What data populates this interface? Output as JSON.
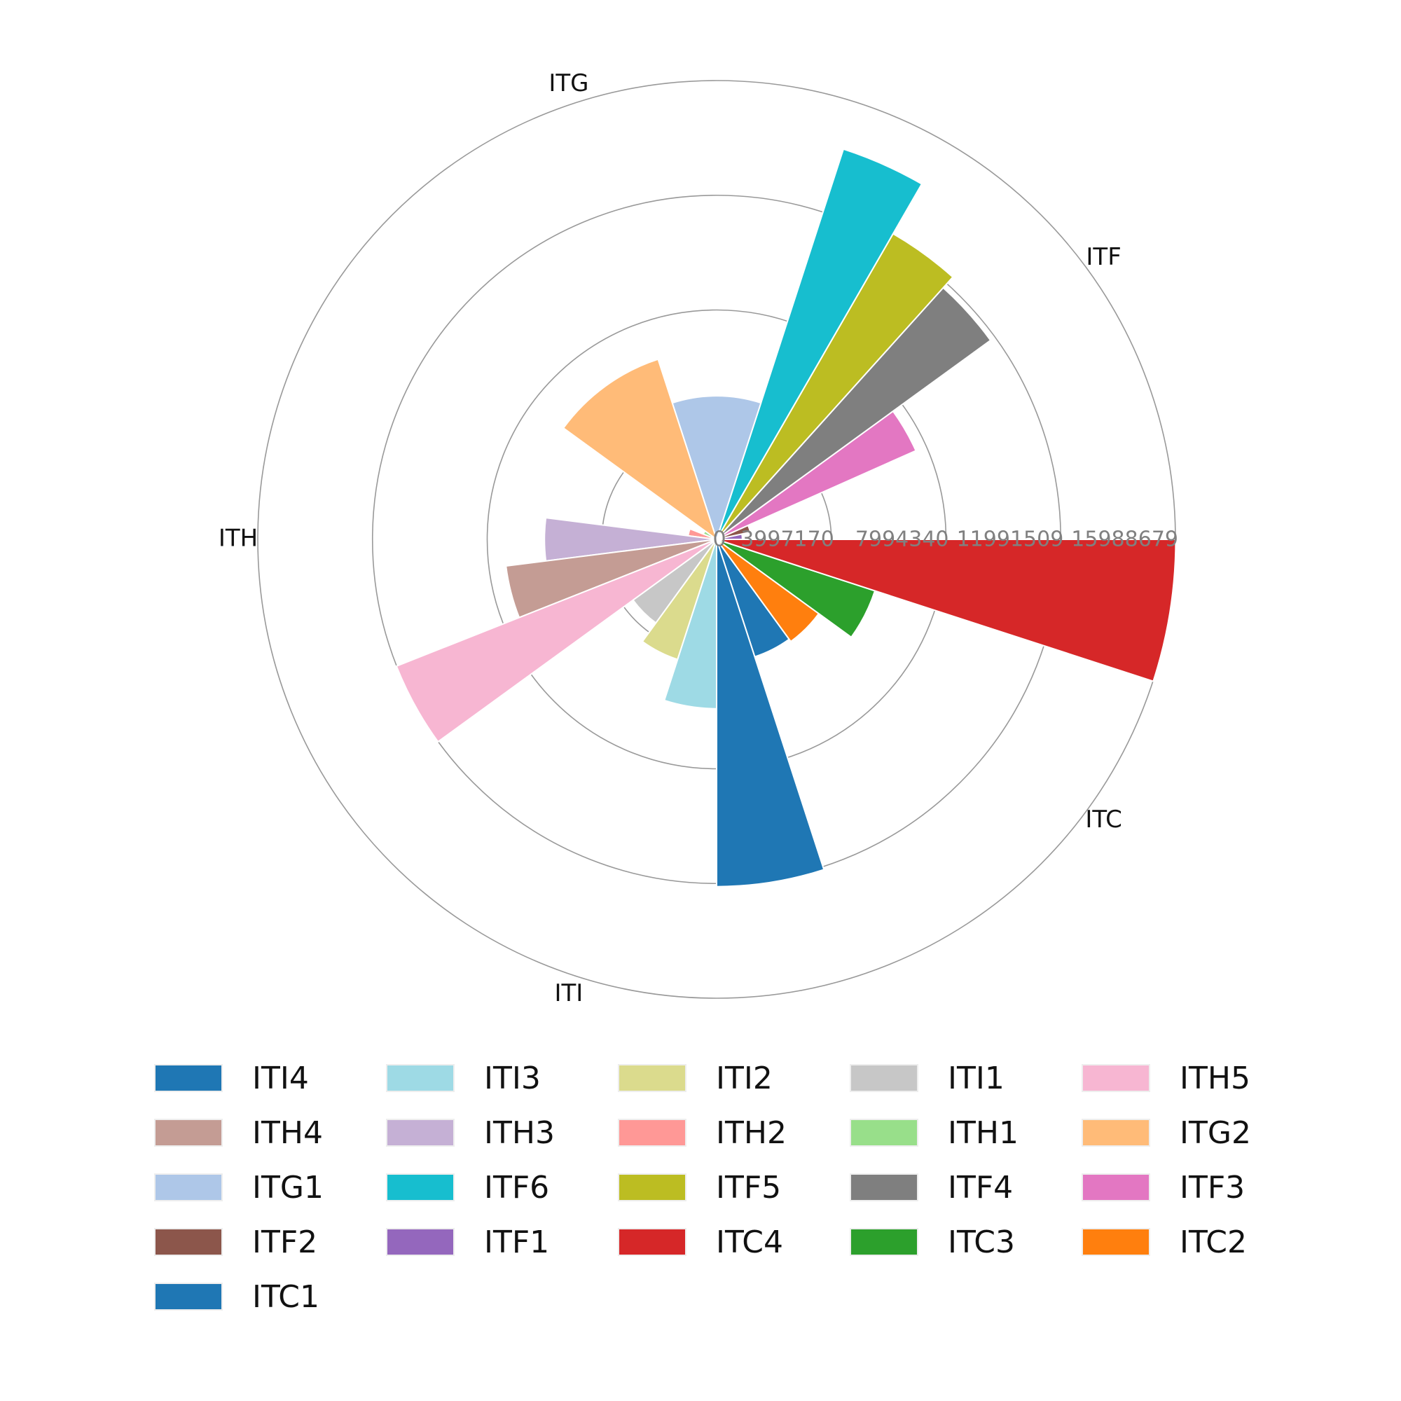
{
  "chart_data": {
    "type": "polar-bar",
    "radial_ticks": [
      "0",
      "3997170",
      "7994340",
      "11991509",
      "15988679"
    ],
    "rmax": 15988679,
    "groups": [
      {
        "label": "ITC",
        "series": [
          {
            "name": "ITC1",
            "value": 4300000,
            "color": "#1f77b4"
          },
          {
            "name": "ITC2",
            "value": 4400000,
            "color": "#ff7f0e"
          },
          {
            "name": "ITC3",
            "value": 5800000,
            "color": "#2ca02c"
          },
          {
            "name": "ITC4",
            "value": 16000000,
            "color": "#d62728"
          }
        ]
      },
      {
        "label": "ITF",
        "series": [
          {
            "name": "ITF1",
            "value": 900000,
            "color": "#9467bd"
          },
          {
            "name": "ITF2",
            "value": 1200000,
            "color": "#8c564b"
          },
          {
            "name": "ITF3",
            "value": 7600000,
            "color": "#e377c2"
          },
          {
            "name": "ITF4",
            "value": 11800000,
            "color": "#7f7f7f"
          },
          {
            "name": "ITF5",
            "value": 12300000,
            "color": "#bcbd22"
          },
          {
            "name": "ITF6",
            "value": 14300000,
            "color": "#17becf"
          }
        ]
      },
      {
        "label": "ITG",
        "series": [
          {
            "name": "ITG1",
            "value": 5000000,
            "color": "#aec7e8"
          },
          {
            "name": "ITG2",
            "value": 6600000,
            "color": "#ffbb78"
          }
        ]
      },
      {
        "label": "ITH",
        "series": [
          {
            "name": "ITH1",
            "value": 500000,
            "color": "#98df8a"
          },
          {
            "name": "ITH2",
            "value": 1000000,
            "color": "#ff9896"
          },
          {
            "name": "ITH3",
            "value": 6000000,
            "color": "#c5b0d5"
          },
          {
            "name": "ITH4",
            "value": 7400000,
            "color": "#c49c94"
          },
          {
            "name": "ITH5",
            "value": 12000000,
            "color": "#f7b6d2"
          }
        ]
      },
      {
        "label": "ITI",
        "series": [
          {
            "name": "ITI1",
            "value": 3600000,
            "color": "#c7c7c7"
          },
          {
            "name": "ITI2",
            "value": 4400000,
            "color": "#dbdb8d"
          },
          {
            "name": "ITI3",
            "value": 5900000,
            "color": "#9edae5"
          },
          {
            "name": "ITI4",
            "value": 12100000,
            "color": "#1f77b4"
          }
        ]
      }
    ],
    "legend": [
      {
        "name": "ITI4",
        "color": "#1f77b4"
      },
      {
        "name": "ITI3",
        "color": "#9edae5"
      },
      {
        "name": "ITI2",
        "color": "#dbdb8d"
      },
      {
        "name": "ITI1",
        "color": "#c7c7c7"
      },
      {
        "name": "ITH5",
        "color": "#f7b6d2"
      },
      {
        "name": "ITH4",
        "color": "#c49c94"
      },
      {
        "name": "ITH3",
        "color": "#c5b0d5"
      },
      {
        "name": "ITH2",
        "color": "#ff9896"
      },
      {
        "name": "ITH1",
        "color": "#98df8a"
      },
      {
        "name": "ITG2",
        "color": "#ffbb78"
      },
      {
        "name": "ITG1",
        "color": "#aec7e8"
      },
      {
        "name": "ITF6",
        "color": "#17becf"
      },
      {
        "name": "ITF5",
        "color": "#bcbd22"
      },
      {
        "name": "ITF4",
        "color": "#7f7f7f"
      },
      {
        "name": "ITF3",
        "color": "#e377c2"
      },
      {
        "name": "ITF2",
        "color": "#8c564b"
      },
      {
        "name": "ITF1",
        "color": "#9467bd"
      },
      {
        "name": "ITC4",
        "color": "#d62728"
      },
      {
        "name": "ITC3",
        "color": "#2ca02c"
      },
      {
        "name": "ITC2",
        "color": "#ff7f0e"
      },
      {
        "name": "ITC1",
        "color": "#1f77b4"
      }
    ],
    "legend_placement": "bottom",
    "grid": true
  }
}
